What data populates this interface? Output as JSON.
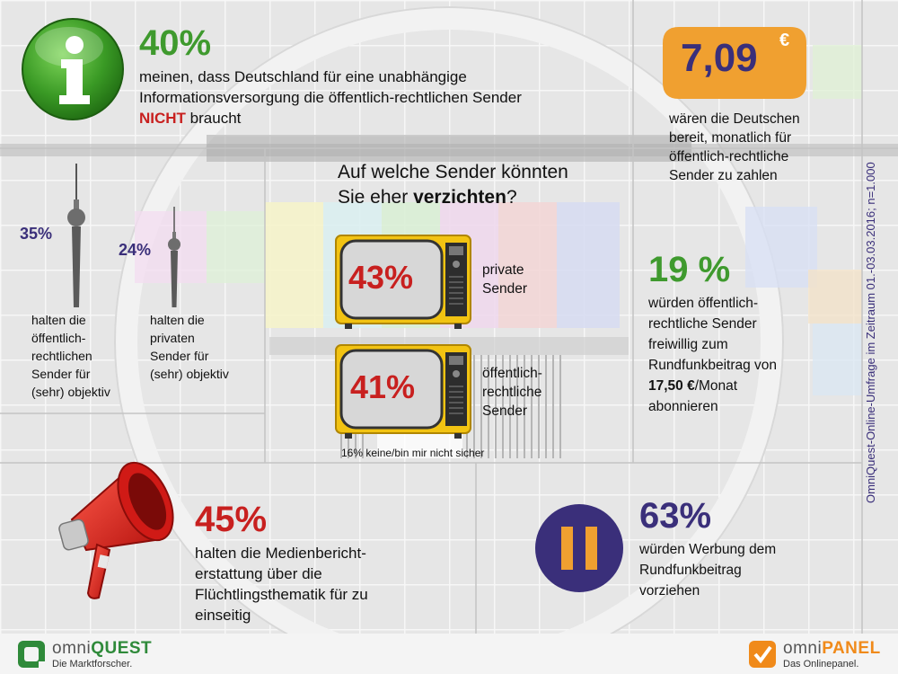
{
  "info_block": {
    "percent": "40%",
    "text_line1": "meinen, dass Deutschland für eine unabhängige",
    "text_line2": "Informationsversorgung die öffentlich-rechtlichen Sender",
    "emphasis": "NICHT",
    "text_end": " braucht",
    "icon": "info-icon"
  },
  "price_block": {
    "amount": "7,09",
    "currency": "€",
    "text_line1": "wären die Deutschen",
    "text_line2": "bereit, monatlich für",
    "text_line3": "öffentlich-rechtliche",
    "text_line4": "Sender zu zahlen"
  },
  "tower_block": {
    "public_percent": "35%",
    "public_text": [
      "halten die",
      "öffentlich-",
      "rechtlichen",
      "Sender für",
      "(sehr) objektiv"
    ],
    "private_percent": "24%",
    "private_text": [
      "halten die",
      "privaten",
      "Sender für",
      "(sehr) objektiv"
    ],
    "icon": "tv-tower-icon"
  },
  "question_block": {
    "line1": "Auf welche Sender könnten",
    "line2_start": "Sie eher ",
    "line2_bold": "verzichten",
    "line2_end": "?",
    "tv1_percent": "43%",
    "tv1_label": [
      "private",
      "Sender"
    ],
    "tv2_percent": "41%",
    "tv2_label": [
      "öffentlich-",
      "rechtliche",
      "Sender"
    ],
    "footnote": "16% keine/bin mir nicht sicher"
  },
  "subscribe_block": {
    "percent": "19 %",
    "text": [
      "würden öffentlich-",
      "rechtliche Sender",
      "freiwillig zum",
      "Rundfunkbeitrag von"
    ],
    "amount_bold": "17,50 €",
    "amount_rest": "/Monat",
    "text_end": "abonnieren"
  },
  "media_block": {
    "percent": "45%",
    "text": [
      "halten die Medienbericht-",
      "erstattung über die",
      "Flüchtlingsthematik für zu",
      "einseitig"
    ],
    "icon": "megaphone-icon"
  },
  "ads_block": {
    "percent": "63%",
    "text": [
      "würden Werbung dem",
      "Rundfunkbeitrag",
      "vorziehen"
    ],
    "icon": "pause-icon"
  },
  "side_note": "OmniQuest-Online-Umfrage im Zeitraum 01.-03.03.2016; n=1.000",
  "footer": {
    "left_brand_a": "omni",
    "left_brand_b": "QUEST",
    "left_tagline": "Die Marktforscher.",
    "right_brand_a": "omni",
    "right_brand_b": "PANEL",
    "right_tagline": "Das Onlinepanel."
  },
  "colors": {
    "green": "#3f9a2e",
    "purple": "#3a2f7a",
    "red": "#c8201f",
    "orange": "#f0a030"
  }
}
